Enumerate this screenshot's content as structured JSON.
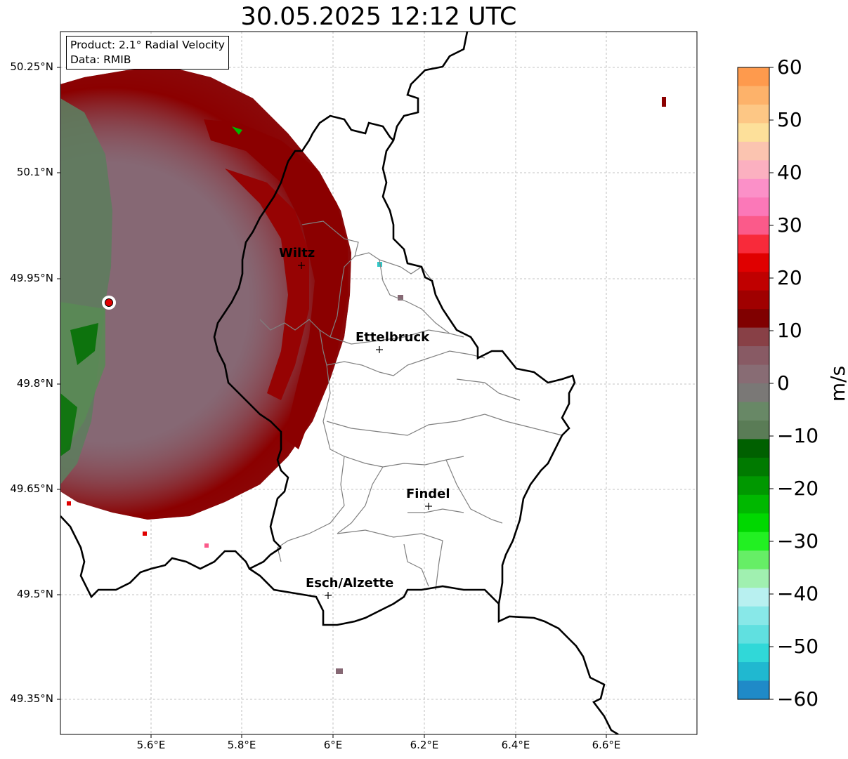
{
  "title": "30.05.2025 12:12 UTC",
  "info": {
    "product_line": "Product: 2.1° Radial Velocity",
    "data_line": "Data: RMIB"
  },
  "lon_ticks": [
    "5.6°E",
    "5.8°E",
    "6°E",
    "6.2°E",
    "6.4°E",
    "6.6°E"
  ],
  "lat_ticks": [
    "50.25°N",
    "50.1°N",
    "49.95°N",
    "49.8°N",
    "49.65°N",
    "49.5°N",
    "49.35°N"
  ],
  "cities": [
    {
      "name": "Wiltz"
    },
    {
      "name": "Ettelbruck"
    },
    {
      "name": "Findel"
    },
    {
      "name": "Esch/Alzette"
    }
  ],
  "colorbar": {
    "unit": "m/s",
    "tick_labels": [
      "60",
      "50",
      "40",
      "30",
      "20",
      "10",
      "0",
      "−10",
      "−20",
      "−30",
      "−40",
      "−50",
      "−60"
    ],
    "range": [
      -60,
      60
    ],
    "colors_top_to_bottom": [
      "#fe9a4d",
      "#fdb26a",
      "#fdc785",
      "#fde09a",
      "#fbc4b0",
      "#fbb0c0",
      "#fb90c8",
      "#fb78b8",
      "#fb5a8a",
      "#f82a3a",
      "#e00000",
      "#c00000",
      "#a00000",
      "#800000",
      "#884046",
      "#885a64",
      "#886c74",
      "#7a7876",
      "#688866",
      "#5a7c56",
      "#006000",
      "#007a00",
      "#009800",
      "#00b800",
      "#00d800",
      "#22f022",
      "#66ee66",
      "#a0f0b0",
      "#b8f0f0",
      "#88e8e8",
      "#60e0e0",
      "#30d8d8",
      "#20b8d0",
      "#1f8ac8"
    ]
  },
  "colors": {
    "border_national": "#000000",
    "border_canton": "#808080",
    "radar_site": "#e00000"
  }
}
